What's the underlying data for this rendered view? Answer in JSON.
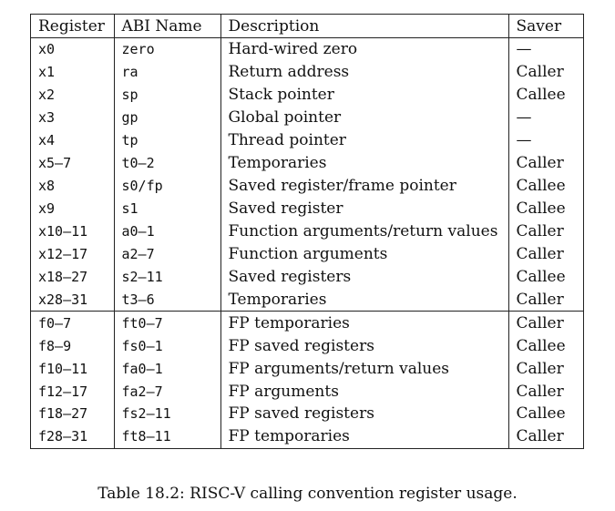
{
  "table": {
    "headers": [
      "Register",
      "ABI Name",
      "Description",
      "Saver"
    ],
    "integer_rows": [
      {
        "register": "x0",
        "abi": "zero",
        "description": "Hard-wired zero",
        "saver": "—"
      },
      {
        "register": "x1",
        "abi": "ra",
        "description": "Return address",
        "saver": "Caller"
      },
      {
        "register": "x2",
        "abi": "sp",
        "description": "Stack pointer",
        "saver": "Callee"
      },
      {
        "register": "x3",
        "abi": "gp",
        "description": "Global pointer",
        "saver": "—"
      },
      {
        "register": "x4",
        "abi": "tp",
        "description": "Thread pointer",
        "saver": "—"
      },
      {
        "register": "x5–7",
        "abi": "t0–2",
        "description": "Temporaries",
        "saver": "Caller"
      },
      {
        "register": "x8",
        "abi": "s0/fp",
        "description": "Saved register/frame pointer",
        "saver": "Callee"
      },
      {
        "register": "x9",
        "abi": "s1",
        "description": "Saved register",
        "saver": "Callee"
      },
      {
        "register": "x10–11",
        "abi": "a0–1",
        "description": "Function arguments/return values",
        "saver": "Caller"
      },
      {
        "register": "x12–17",
        "abi": "a2–7",
        "description": "Function arguments",
        "saver": "Caller"
      },
      {
        "register": "x18–27",
        "abi": "s2–11",
        "description": "Saved registers",
        "saver": "Callee"
      },
      {
        "register": "x28–31",
        "abi": "t3–6",
        "description": "Temporaries",
        "saver": "Caller"
      }
    ],
    "fp_rows": [
      {
        "register": "f0–7",
        "abi": "ft0–7",
        "description": "FP temporaries",
        "saver": "Caller"
      },
      {
        "register": "f8–9",
        "abi": "fs0–1",
        "description": "FP saved registers",
        "saver": "Callee"
      },
      {
        "register": "f10–11",
        "abi": "fa0–1",
        "description": "FP arguments/return values",
        "saver": "Caller"
      },
      {
        "register": "f12–17",
        "abi": "fa2–7",
        "description": "FP arguments",
        "saver": "Caller"
      },
      {
        "register": "f18–27",
        "abi": "fs2–11",
        "description": "FP saved registers",
        "saver": "Callee"
      },
      {
        "register": "f28–31",
        "abi": "ft8–11",
        "description": "FP temporaries",
        "saver": "Caller"
      }
    ]
  },
  "caption": "Table 18.2: RISC-V calling convention register usage."
}
